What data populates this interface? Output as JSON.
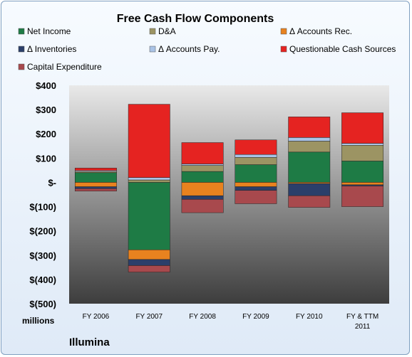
{
  "chart_data": {
    "type": "bar",
    "stacked": true,
    "title": "Free Cash Flow Components",
    "ylabel": "millions",
    "footer": "Illumina",
    "ylim": [
      -500,
      400
    ],
    "yticks": [
      400,
      300,
      200,
      100,
      0,
      -100,
      -200,
      -300,
      -400,
      -500
    ],
    "ytick_labels": [
      "$400",
      "$300",
      "$200",
      "$100",
      "$-",
      "$(100)",
      "$(200)",
      "$(300)",
      "$(400)",
      "$(500)"
    ],
    "categories": [
      {
        "label": "FY 2006",
        "lines": [
          "FY 2006"
        ]
      },
      {
        "label": "FY 2007",
        "lines": [
          "FY 2007"
        ]
      },
      {
        "label": "FY 2008",
        "lines": [
          "FY 2008"
        ]
      },
      {
        "label": "FY 2009",
        "lines": [
          "FY 2009"
        ]
      },
      {
        "label": "FY 2010",
        "lines": [
          "FY 2010"
        ]
      },
      {
        "label": "FY & TTM 2011",
        "lines": [
          "FY & TTM",
          "2011"
        ]
      }
    ],
    "series": [
      {
        "name": "Net Income",
        "color": "#1e7b45",
        "values": [
          40,
          -278,
          45,
          73,
          125,
          88
        ]
      },
      {
        "name": "D&A",
        "color": "#9c9463",
        "values": [
          5,
          10,
          25,
          30,
          45,
          65
        ]
      },
      {
        "name": "Δ Accounts Rec.",
        "color": "#e8821f",
        "values": [
          -18,
          -40,
          -55,
          -18,
          -5,
          -10
        ]
      },
      {
        "name": "Δ Inventories",
        "color": "#2b3f6a",
        "values": [
          -8,
          -25,
          -15,
          -15,
          -50,
          -5
        ]
      },
      {
        "name": "Δ Accounts Pay.",
        "color": "#a9c3e6",
        "values": [
          4,
          10,
          6,
          12,
          15,
          8
        ]
      },
      {
        "name": "Questionable Cash Sources",
        "color": "#e52321",
        "values": [
          10,
          302,
          88,
          60,
          85,
          126
        ]
      },
      {
        "name": "Capital Expenditure",
        "color": "#a8494d",
        "values": [
          -10,
          -27,
          -55,
          -55,
          -48,
          -85
        ]
      }
    ],
    "legend_position": "top",
    "grid": false
  }
}
